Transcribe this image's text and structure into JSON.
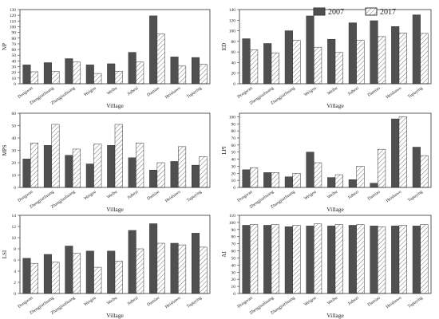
{
  "legend": {
    "items": [
      {
        "label": "2007",
        "fill": "#505050"
      },
      {
        "label": "2017",
        "fill": "hatch"
      }
    ]
  },
  "colors": {
    "dark_bar": "#505050",
    "hatch_line": "#666666",
    "axis": "#333333"
  },
  "chart_data": [
    {
      "type": "bar",
      "ylabel": "NP",
      "xlabel": "Village",
      "ylim": [
        0,
        130
      ],
      "yticks": [
        0,
        10,
        20,
        30,
        40,
        50,
        60,
        70,
        80,
        90,
        100,
        110,
        120,
        130
      ],
      "categories": [
        "Dongwan",
        "Zhengjiazhuang",
        "Zhangjiazhuang",
        "Weigou",
        "Weibu",
        "Jiabezi",
        "Damiao",
        "Heishawo",
        "Tupuying"
      ],
      "series": [
        {
          "name": "2007",
          "values": [
            33,
            37,
            44,
            33,
            35,
            55,
            119,
            47,
            46
          ]
        },
        {
          "name": "2017",
          "values": [
            21,
            22,
            38,
            18,
            22,
            38,
            87,
            31,
            34
          ]
        }
      ]
    },
    {
      "type": "bar",
      "ylabel": "ED",
      "xlabel": "Village",
      "ylim": [
        0,
        140
      ],
      "yticks": [
        0,
        20,
        40,
        60,
        80,
        100,
        120,
        140
      ],
      "categories": [
        "Dongwan",
        "Zhengjiazhuang",
        "Zhangjiazhuang",
        "Weigou",
        "Weibu",
        "Jiabezi",
        "Damiao",
        "Heishawo",
        "Tupuying"
      ],
      "series": [
        {
          "name": "2007",
          "values": [
            85,
            76,
            100,
            128,
            84,
            115,
            119,
            108,
            130
          ]
        },
        {
          "name": "2017",
          "values": [
            64,
            58,
            82,
            69,
            59,
            82,
            89,
            96,
            95
          ]
        }
      ]
    },
    {
      "type": "bar",
      "ylabel": "MPS",
      "xlabel": "Village",
      "ylim": [
        0,
        60
      ],
      "yticks": [
        0,
        10,
        20,
        30,
        40,
        50,
        60
      ],
      "categories": [
        "Dongwan",
        "Zhengjiazhuang",
        "Zhangjiazhuang",
        "Weigou",
        "Weibu",
        "Jiabezi",
        "Damiao",
        "Heishawo",
        "Tupuying"
      ],
      "series": [
        {
          "name": "2007",
          "values": [
            23,
            34,
            26,
            19,
            34,
            24,
            14,
            21,
            18
          ]
        },
        {
          "name": "2017",
          "values": [
            36,
            51,
            31,
            35,
            51,
            36,
            20,
            33,
            25
          ]
        }
      ]
    },
    {
      "type": "bar",
      "ylabel": "LPI",
      "xlabel": "Village",
      "ylim": [
        0,
        105
      ],
      "yticks": [
        0,
        10,
        20,
        30,
        40,
        50,
        60,
        70,
        80,
        90,
        100
      ],
      "categories": [
        "Dongwan",
        "Zhengjiazhuang",
        "Zhangjiazhuang",
        "Weigou",
        "Weibu",
        "Jiabezi",
        "Damiao",
        "Heishawo",
        "Tupuying"
      ],
      "series": [
        {
          "name": "2007",
          "values": [
            25,
            21,
            15,
            50,
            14,
            11,
            6,
            97,
            57
          ]
        },
        {
          "name": "2017",
          "values": [
            28,
            21,
            20,
            35,
            18,
            30,
            54,
            100,
            45
          ]
        }
      ]
    },
    {
      "type": "bar",
      "ylabel": "LSI",
      "xlabel": "Village",
      "ylim": [
        0,
        14
      ],
      "yticks": [
        0,
        2,
        4,
        6,
        8,
        10,
        12,
        14
      ],
      "categories": [
        "Dongwan",
        "Zhengjiazhuang",
        "Zhangjiazhuang",
        "Weigou",
        "Weibu",
        "Jiabezi",
        "Damiao",
        "Heishawo",
        "Tupuying"
      ],
      "series": [
        {
          "name": "2007",
          "values": [
            6.3,
            7.0,
            8.5,
            7.6,
            7.6,
            11.3,
            12.5,
            9.0,
            10.8
          ]
        },
        {
          "name": "2017",
          "values": [
            5.4,
            5.6,
            7.2,
            4.7,
            5.8,
            8.0,
            9.0,
            8.7,
            8.3
          ]
        }
      ]
    },
    {
      "type": "bar",
      "ylabel": "AI",
      "xlabel": "Village",
      "ylim": [
        0,
        110
      ],
      "yticks": [
        0,
        10,
        20,
        30,
        40,
        50,
        60,
        70,
        80,
        90,
        100,
        110
      ],
      "categories": [
        "Dongwan",
        "Zhengjiazhuang",
        "Zhangjiazhuang",
        "Weigou",
        "Weibu",
        "Jiabezi",
        "Damiao",
        "Heishawo",
        "Tupuying"
      ],
      "series": [
        {
          "name": "2007",
          "values": [
            96,
            96,
            94,
            95,
            95,
            96,
            95,
            95,
            95
          ]
        },
        {
          "name": "2017",
          "values": [
            97,
            97,
            96,
            98,
            97,
            97,
            94,
            96,
            97
          ]
        }
      ]
    }
  ]
}
